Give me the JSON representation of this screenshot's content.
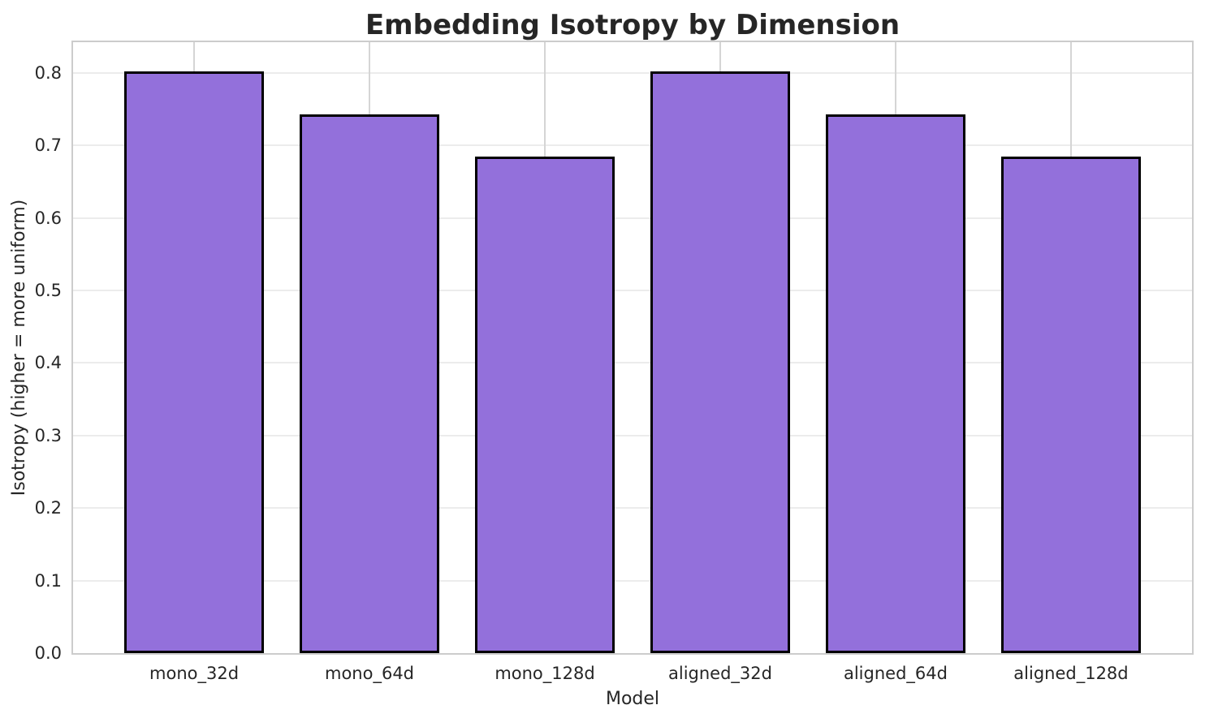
{
  "chart_data": {
    "type": "bar",
    "title": "Embedding Isotropy by Dimension",
    "xlabel": "Model",
    "ylabel": "Isotropy (higher = more uniform)",
    "categories": [
      "mono_32d",
      "mono_64d",
      "mono_128d",
      "aligned_32d",
      "aligned_64d",
      "aligned_128d"
    ],
    "values": [
      0.802,
      0.743,
      0.685,
      0.802,
      0.743,
      0.685
    ],
    "ylim": [
      0,
      0.842
    ],
    "ytick_values": [
      0.0,
      0.1,
      0.2,
      0.3,
      0.4,
      0.5,
      0.6,
      0.7,
      0.8
    ],
    "ytick_labels": [
      "0.0",
      "0.1",
      "0.2",
      "0.3",
      "0.4",
      "0.5",
      "0.6",
      "0.7",
      "0.8"
    ],
    "grid": "both",
    "legend_position": "none",
    "colors": {
      "bar_fill": "#9370DB",
      "bar_edge": "#000000",
      "grid_horizontal": "#ececec",
      "grid_vertical": "#d5d5d5",
      "spine": "#cccccc",
      "text": "#262626"
    }
  }
}
